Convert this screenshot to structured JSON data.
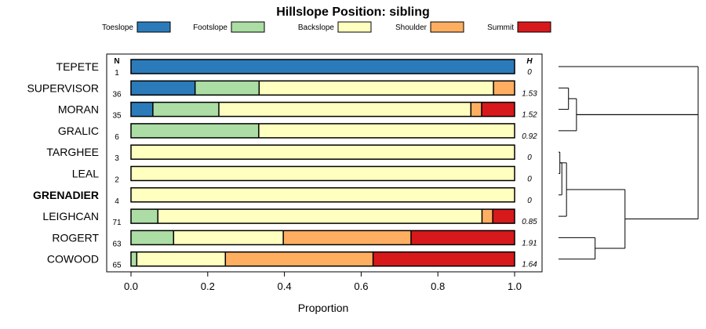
{
  "chart_data": {
    "type": "bar",
    "stacked": true,
    "orientation": "horizontal",
    "title": "Hillslope Position: sibling",
    "xlabel": "Proportion",
    "xlim": [
      0,
      1
    ],
    "xticks": [
      "0.0",
      "0.2",
      "0.4",
      "0.6",
      "0.8",
      "1.0"
    ],
    "legend_position": "top",
    "n_header": "N",
    "h_header": "H",
    "highlighted_category": "GRENADIER",
    "series": [
      {
        "name": "Toeslope",
        "color": "#2b7bba"
      },
      {
        "name": "Footslope",
        "color": "#abdda4"
      },
      {
        "name": "Backslope",
        "color": "#ffffbf"
      },
      {
        "name": "Shoulder",
        "color": "#fdae61"
      },
      {
        "name": "Summit",
        "color": "#d7191c"
      }
    ],
    "categories": [
      {
        "name": "TEPETE",
        "n": "1",
        "h": "0",
        "values": [
          1,
          0,
          0,
          0,
          0
        ]
      },
      {
        "name": "SUPERVISOR",
        "n": "36",
        "h": "1.53",
        "values": [
          0.167,
          0.167,
          0.611,
          0.055,
          0
        ]
      },
      {
        "name": "MORAN",
        "n": "35",
        "h": "1.52",
        "values": [
          0.057,
          0.172,
          0.657,
          0.028,
          0.086
        ]
      },
      {
        "name": "GRALIC",
        "n": "6",
        "h": "0.92",
        "values": [
          0,
          0.333,
          0.667,
          0,
          0
        ]
      },
      {
        "name": "TARGHEE",
        "n": "3",
        "h": "0",
        "values": [
          0,
          0,
          1,
          0,
          0
        ]
      },
      {
        "name": "LEAL",
        "n": "2",
        "h": "0",
        "values": [
          0,
          0,
          1,
          0,
          0
        ]
      },
      {
        "name": "GRENADIER",
        "n": "4",
        "h": "0",
        "values": [
          0,
          0,
          1,
          0,
          0
        ]
      },
      {
        "name": "LEIGHCAN",
        "n": "71",
        "h": "0.85",
        "values": [
          0,
          0.07,
          0.845,
          0.028,
          0.057
        ]
      },
      {
        "name": "ROGERT",
        "n": "63",
        "h": "1.91",
        "values": [
          0,
          0.111,
          0.286,
          0.333,
          0.27
        ]
      },
      {
        "name": "COWOOD",
        "n": "65",
        "h": "1.64",
        "values": [
          0,
          0.015,
          0.231,
          0.385,
          0.369
        ]
      }
    ],
    "dendrogram": {
      "merges": [
        [
          [
            4,
            5
          ],
          0.02
        ],
        [
          [
            4.5,
            6
          ],
          0.05
        ],
        [
          [
            4.5,
            7
          ],
          0.12
        ],
        [
          [
            1,
            2
          ],
          0.15
        ],
        [
          [
            1.5,
            3
          ],
          0.27
        ],
        [
          [
            8,
            9
          ],
          0.55
        ],
        [
          [
            5.75,
            8.5
          ],
          1.0
        ],
        [
          [
            0,
            2.25
          ],
          2.1
        ],
        [
          [
            2.25,
            7.125
          ],
          2.1
        ]
      ]
    }
  }
}
